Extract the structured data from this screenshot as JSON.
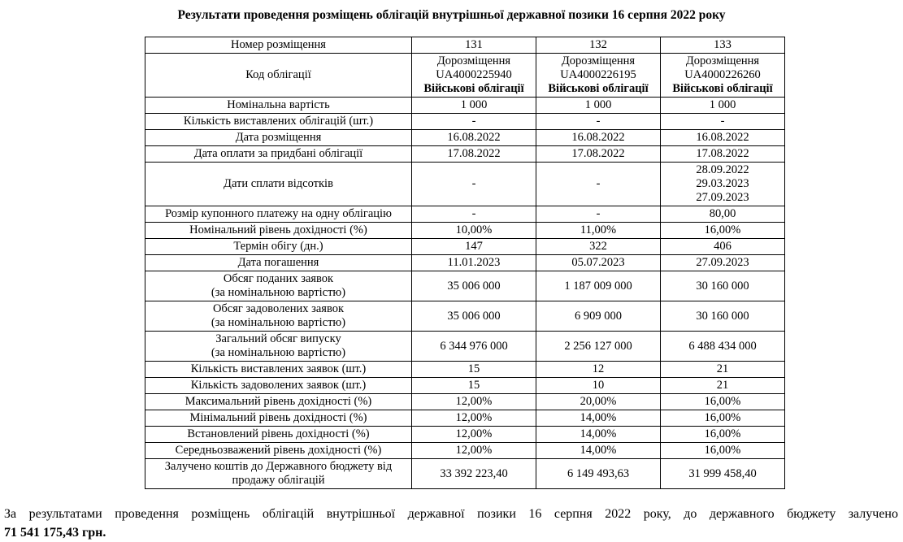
{
  "title": "Результати проведення розміщень облігацій внутрішньої державної позики 16 серпня 2022 року",
  "table": {
    "rows": [
      {
        "label": "Номер розміщення",
        "cells": [
          "131",
          "132",
          "133"
        ]
      },
      {
        "label": "Код облігації",
        "bold_last": true,
        "cells": [
          "Дорозміщення\nUA4000225940\nВійськові облігації",
          "Дорозміщення\nUA4000226195\nВійськові облігації",
          "Дорозміщення\nUA4000226260\nВійськові облігації"
        ]
      },
      {
        "label": "Номінальна вартість",
        "cells": [
          "1 000",
          "1 000",
          "1 000"
        ]
      },
      {
        "label": "Кількість виставлених облігацій (шт.)",
        "cells": [
          "-",
          "-",
          "-"
        ]
      },
      {
        "label": "Дата розміщення",
        "cells": [
          "16.08.2022",
          "16.08.2022",
          "16.08.2022"
        ]
      },
      {
        "label": "Дата оплати за придбані облігації",
        "cells": [
          "17.08.2022",
          "17.08.2022",
          "17.08.2022"
        ]
      },
      {
        "label": "Дати сплати відсотків",
        "cells": [
          "-",
          "-",
          "28.09.2022\n29.03.2023\n27.09.2023"
        ]
      },
      {
        "label": "Розмір купонного платежу на одну облігацію",
        "cells": [
          "-",
          "-",
          "80,00"
        ]
      },
      {
        "label": "Номінальний рівень дохідності (%)",
        "cells": [
          "10,00%",
          "11,00%",
          "16,00%"
        ]
      },
      {
        "label": "Термін обігу (дн.)",
        "cells": [
          "147",
          "322",
          "406"
        ]
      },
      {
        "label": "Дата погашення",
        "cells": [
          "11.01.2023",
          "05.07.2023",
          "27.09.2023"
        ]
      },
      {
        "label": "Обсяг поданих заявок\n(за номінальною вартістю)",
        "cells": [
          "35 006 000",
          "1 187 009 000",
          "30 160 000"
        ]
      },
      {
        "label": "Обсяг задоволених заявок\n(за номінальною вартістю)",
        "cells": [
          "35 006 000",
          "6 909 000",
          "30 160 000"
        ]
      },
      {
        "label": "Загальний обсяг випуску\n(за номінальною вартістю)",
        "cells": [
          "6 344 976 000",
          "2 256 127 000",
          "6 488 434 000"
        ]
      },
      {
        "label": "Кількість виставлених заявок (шт.)",
        "cells": [
          "15",
          "12",
          "21"
        ]
      },
      {
        "label": "Кількість задоволених заявок (шт.)",
        "cells": [
          "15",
          "10",
          "21"
        ]
      },
      {
        "label": "Максимальний рівень дохідності (%)",
        "cells": [
          "12,00%",
          "20,00%",
          "16,00%"
        ]
      },
      {
        "label": "Мінімальний рівень дохідності (%)",
        "cells": [
          "12,00%",
          "14,00%",
          "16,00%"
        ]
      },
      {
        "label": "Встановлений рівень дохідності (%)",
        "cells": [
          "12,00%",
          "14,00%",
          "16,00%"
        ]
      },
      {
        "label": "Середньозважений рівень дохідності (%)",
        "cells": [
          "12,00%",
          "14,00%",
          "16,00%"
        ]
      },
      {
        "label": "Залучено коштів до Державного бюджету від\nпродажу облігацій",
        "cells": [
          "33 392 223,40",
          "6 149 493,63",
          "31 999 458,40"
        ]
      }
    ]
  },
  "footer": {
    "line1": "За результатами проведення розміщень облігацій внутрішньої державної позики 16 серпня 2022 року, до державного бюджету залучено",
    "line2": "71 541 175,43 грн."
  },
  "colors": {
    "text": "#000000",
    "border": "#000000",
    "background": "#ffffff"
  }
}
